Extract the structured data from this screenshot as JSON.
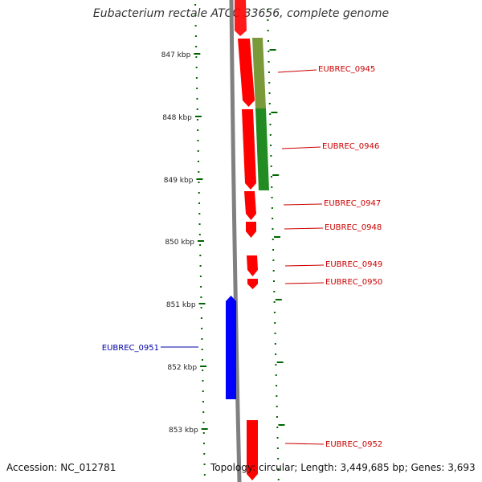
{
  "genome_title": "Eubacterium rectale ATCC 33656, complete genome",
  "accession_text": "Accession: NC_012781",
  "summary_text": "Topology: circular; Length: 3,449,685 bp; Genes: 3,693",
  "colors": {
    "forward_gene": "#ff0000",
    "reverse_gene": "#0000ff",
    "highlight_segment": "#228b22",
    "backbone": "#808080",
    "tick": "#006400",
    "forward_label": "#cc0000",
    "reverse_label": "#0000aa"
  },
  "scale_labels": [
    "847 kbp",
    "848 kbp",
    "849 kbp",
    "850 kbp",
    "851 kbp",
    "852 kbp",
    "853 kbp"
  ],
  "genes": [
    {
      "id": "EUBREC_0945",
      "strand": "+"
    },
    {
      "id": "EUBREC_0946",
      "strand": "+"
    },
    {
      "id": "EUBREC_0947",
      "strand": "+"
    },
    {
      "id": "EUBREC_0948",
      "strand": "+"
    },
    {
      "id": "EUBREC_0949",
      "strand": "+"
    },
    {
      "id": "EUBREC_0950",
      "strand": "+"
    },
    {
      "id": "EUBREC_0951",
      "strand": "-"
    },
    {
      "id": "EUBREC_0952",
      "strand": "+"
    }
  ]
}
